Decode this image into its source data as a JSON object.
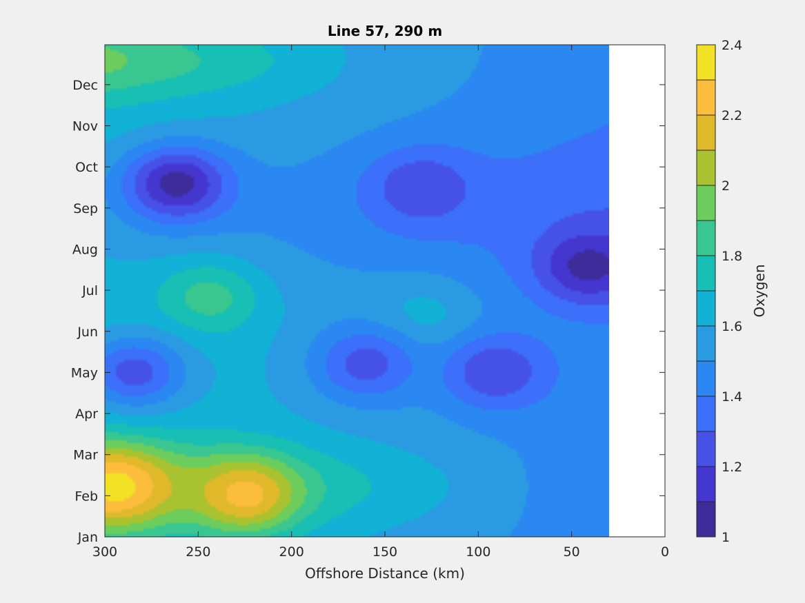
{
  "chart_data": {
    "type": "contour",
    "title": "Line 57, 290 m",
    "xlabel": "Offshore Distance (km)",
    "ylabel": "",
    "x_reversed": true,
    "xlim": [
      0,
      300
    ],
    "x_ticks": [
      300,
      250,
      200,
      150,
      100,
      50,
      0
    ],
    "y_ticks": [
      "Jan",
      "Feb",
      "Mar",
      "Apr",
      "May",
      "Jun",
      "Jul",
      "Aug",
      "Sep",
      "Oct",
      "Nov",
      "Dec"
    ],
    "data_extent_km": [
      30,
      300
    ],
    "colorbar": {
      "label": "Oxygen",
      "ticks": [
        1,
        1.2,
        1.4,
        1.6,
        1.8,
        2,
        2.2,
        2.4
      ],
      "levels": [
        1.0,
        1.1,
        1.2,
        1.3,
        1.4,
        1.5,
        1.6,
        1.7,
        1.8,
        1.9,
        2.0,
        2.1,
        2.2,
        2.3,
        2.4
      ],
      "colors": [
        "#3e2c9b",
        "#4437d0",
        "#4651e8",
        "#3c6ffa",
        "#2b87f1",
        "#2a9be2",
        "#12b1d6",
        "#17bfb4",
        "#39c690",
        "#6ccd5c",
        "#a9c230",
        "#dfb92a",
        "#fcbd3d",
        "#f3e224"
      ]
    },
    "features": [
      {
        "x_km": 262,
        "month": 8.6,
        "value": 1.05,
        "note": "oxygen minimum"
      },
      {
        "x_km": 40,
        "month": 6.6,
        "value": 1.05,
        "note": "oxygen minimum"
      },
      {
        "x_km": 225,
        "month": 1.0,
        "value": 2.25,
        "note": "oxygen maximum"
      },
      {
        "x_km": 295,
        "month": 1.2,
        "value": 2.35,
        "note": "oxygen maximum"
      },
      {
        "x_km": 245,
        "month": 5.8,
        "value": 1.85,
        "note": "local high"
      },
      {
        "x_km": 130,
        "month": 5.3,
        "value": 1.65,
        "note": "local high"
      },
      {
        "x_km": 285,
        "month": 4.0,
        "value": 1.25,
        "note": "local low"
      },
      {
        "x_km": 160,
        "month": 4.2,
        "value": 1.25,
        "note": "local low"
      },
      {
        "x_km": 130,
        "month": 8.5,
        "value": 1.2,
        "note": "local low"
      },
      {
        "x_km": 90,
        "month": 4.0,
        "value": 1.2,
        "note": "local low"
      }
    ]
  }
}
